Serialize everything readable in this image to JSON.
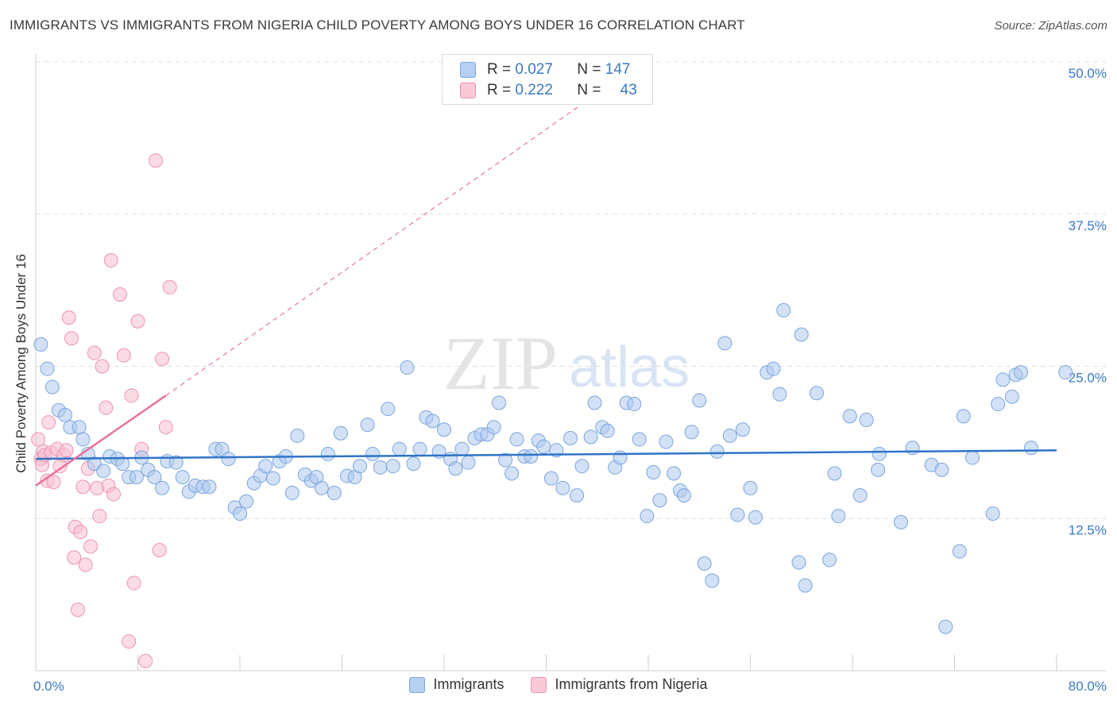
{
  "title": "IMMIGRANTS VS IMMIGRANTS FROM NIGERIA CHILD POVERTY AMONG BOYS UNDER 16 CORRELATION CHART",
  "source": "Source: ZipAtlas.com",
  "watermark": {
    "zip": "ZIP",
    "atlas": "atlas"
  },
  "colors": {
    "blue_fill": "#aec9ee",
    "blue_stroke": "#7aa6dc",
    "blue_line": "#2f74c8",
    "pink_fill": "#f7bfd0",
    "pink_stroke": "#ec93b0",
    "pink_line": "#e8719a",
    "axis_text": "#3a78c4",
    "grid": "#dddddd"
  },
  "stats": {
    "r_label": "R =",
    "n_label": "N =",
    "immigrants": {
      "r": "0.027",
      "n": "147"
    },
    "nigeria": {
      "r": "0.222",
      "n": "43"
    }
  },
  "chart_data": {
    "type": "scatter",
    "title": "IMMIGRANTS VS IMMIGRANTS FROM NIGERIA CHILD POVERTY AMONG BOYS UNDER 16 CORRELATION CHART",
    "xlabel": "",
    "ylabel": "Child Poverty Among Boys Under 16",
    "xlim": [
      0,
      80
    ],
    "ylim": [
      0,
      50
    ],
    "x_tick_labels": [
      "0.0%",
      "80.0%"
    ],
    "y_ticks": [
      12.5,
      25.0,
      37.5,
      50.0
    ],
    "y_tick_labels": [
      "12.5%",
      "25.0%",
      "37.5%",
      "50.0%"
    ],
    "legend": [
      "Immigrants",
      "Immigrants from Nigeria"
    ],
    "series": [
      {
        "name": "Immigrants",
        "trend": {
          "x": [
            0,
            80
          ],
          "y": [
            17.4,
            18.1
          ]
        },
        "points": [
          [
            0.4,
            26.8
          ],
          [
            0.9,
            24.8
          ],
          [
            1.3,
            23.3
          ],
          [
            1.8,
            21.4
          ],
          [
            2.3,
            21.0
          ],
          [
            2.7,
            20.0
          ],
          [
            3.4,
            20.0
          ],
          [
            3.7,
            19.0
          ],
          [
            4.1,
            17.8
          ],
          [
            4.6,
            17.0
          ],
          [
            5.3,
            16.4
          ],
          [
            5.8,
            17.6
          ],
          [
            6.4,
            17.4
          ],
          [
            6.8,
            17.0
          ],
          [
            7.3,
            15.9
          ],
          [
            7.9,
            15.9
          ],
          [
            8.3,
            17.5
          ],
          [
            8.8,
            16.5
          ],
          [
            9.3,
            15.9
          ],
          [
            9.9,
            15.0
          ],
          [
            10.3,
            17.2
          ],
          [
            11.0,
            17.1
          ],
          [
            11.5,
            15.9
          ],
          [
            12.0,
            14.7
          ],
          [
            12.5,
            15.2
          ],
          [
            13.1,
            15.1
          ],
          [
            13.6,
            15.1
          ],
          [
            14.1,
            18.2
          ],
          [
            14.6,
            18.2
          ],
          [
            15.1,
            17.4
          ],
          [
            15.6,
            13.4
          ],
          [
            16.0,
            12.9
          ],
          [
            16.5,
            13.9
          ],
          [
            17.1,
            15.4
          ],
          [
            17.6,
            16.0
          ],
          [
            18.0,
            16.8
          ],
          [
            18.6,
            15.8
          ],
          [
            19.1,
            17.2
          ],
          [
            19.6,
            17.6
          ],
          [
            20.1,
            14.6
          ],
          [
            20.5,
            19.3
          ],
          [
            21.1,
            16.1
          ],
          [
            21.6,
            15.6
          ],
          [
            22.0,
            15.9
          ],
          [
            22.4,
            15.0
          ],
          [
            22.9,
            17.8
          ],
          [
            23.4,
            14.6
          ],
          [
            23.9,
            19.5
          ],
          [
            24.4,
            16.0
          ],
          [
            25.0,
            15.9
          ],
          [
            25.4,
            16.8
          ],
          [
            26.0,
            20.2
          ],
          [
            26.4,
            17.8
          ],
          [
            27.0,
            16.7
          ],
          [
            27.6,
            21.5
          ],
          [
            28.0,
            16.8
          ],
          [
            28.5,
            18.2
          ],
          [
            29.1,
            24.9
          ],
          [
            29.6,
            17.0
          ],
          [
            30.1,
            18.2
          ],
          [
            30.6,
            20.8
          ],
          [
            31.1,
            20.5
          ],
          [
            31.6,
            18.0
          ],
          [
            32.0,
            19.8
          ],
          [
            32.5,
            17.4
          ],
          [
            32.9,
            16.6
          ],
          [
            33.4,
            18.2
          ],
          [
            33.9,
            17.1
          ],
          [
            34.4,
            19.1
          ],
          [
            34.9,
            19.4
          ],
          [
            35.4,
            19.4
          ],
          [
            35.9,
            20.0
          ],
          [
            36.3,
            22.0
          ],
          [
            36.8,
            17.3
          ],
          [
            37.3,
            16.2
          ],
          [
            37.7,
            19.0
          ],
          [
            38.3,
            17.6
          ],
          [
            38.8,
            17.6
          ],
          [
            39.4,
            18.9
          ],
          [
            39.8,
            18.4
          ],
          [
            40.4,
            15.8
          ],
          [
            40.8,
            18.1
          ],
          [
            41.3,
            15.0
          ],
          [
            41.9,
            19.1
          ],
          [
            42.4,
            14.4
          ],
          [
            42.8,
            16.8
          ],
          [
            43.5,
            19.2
          ],
          [
            43.8,
            22.0
          ],
          [
            44.4,
            20.0
          ],
          [
            44.8,
            19.7
          ],
          [
            45.4,
            16.7
          ],
          [
            45.8,
            17.5
          ],
          [
            46.3,
            22.0
          ],
          [
            46.9,
            21.9
          ],
          [
            47.3,
            19.0
          ],
          [
            47.9,
            12.7
          ],
          [
            48.4,
            16.3
          ],
          [
            48.9,
            14.0
          ],
          [
            49.4,
            18.8
          ],
          [
            50.0,
            16.2
          ],
          [
            50.5,
            14.8
          ],
          [
            50.8,
            14.4
          ],
          [
            51.4,
            19.6
          ],
          [
            52.0,
            22.2
          ],
          [
            52.4,
            8.8
          ],
          [
            53.0,
            7.4
          ],
          [
            53.4,
            18.0
          ],
          [
            54.0,
            26.9
          ],
          [
            54.4,
            19.3
          ],
          [
            55.0,
            12.8
          ],
          [
            55.4,
            19.8
          ],
          [
            56.0,
            15.0
          ],
          [
            56.4,
            12.6
          ],
          [
            57.3,
            24.5
          ],
          [
            57.8,
            24.8
          ],
          [
            58.3,
            22.7
          ],
          [
            58.6,
            29.6
          ],
          [
            59.8,
            8.9
          ],
          [
            60.0,
            27.6
          ],
          [
            60.3,
            7.0
          ],
          [
            61.2,
            22.8
          ],
          [
            62.2,
            9.1
          ],
          [
            62.6,
            16.2
          ],
          [
            62.9,
            12.7
          ],
          [
            63.8,
            20.9
          ],
          [
            64.6,
            14.4
          ],
          [
            65.1,
            20.6
          ],
          [
            66.0,
            16.5
          ],
          [
            66.1,
            17.8
          ],
          [
            67.8,
            12.2
          ],
          [
            68.7,
            18.3
          ],
          [
            70.2,
            16.9
          ],
          [
            71.0,
            16.5
          ],
          [
            71.3,
            3.6
          ],
          [
            72.4,
            9.8
          ],
          [
            72.7,
            20.9
          ],
          [
            73.4,
            17.5
          ],
          [
            75.0,
            12.9
          ],
          [
            75.4,
            21.9
          ],
          [
            75.8,
            23.9
          ],
          [
            76.5,
            22.5
          ],
          [
            76.8,
            24.3
          ],
          [
            77.2,
            24.5
          ],
          [
            78.0,
            18.3
          ],
          [
            80.7,
            24.5
          ]
        ]
      },
      {
        "name": "Immigrants from Nigeria",
        "trend": {
          "x": [
            0,
            10.2
          ],
          "y": [
            15.2,
            22.6
          ]
        },
        "trend_extension": {
          "x": [
            10.2,
            42.5
          ],
          "y": [
            22.6,
            46.3
          ]
        },
        "points": [
          [
            0.2,
            19.0
          ],
          [
            0.4,
            17.4
          ],
          [
            0.5,
            16.9
          ],
          [
            0.6,
            18.0
          ],
          [
            0.7,
            17.7
          ],
          [
            0.9,
            15.6
          ],
          [
            1.0,
            20.4
          ],
          [
            1.2,
            17.9
          ],
          [
            1.4,
            15.5
          ],
          [
            1.7,
            18.2
          ],
          [
            1.9,
            16.8
          ],
          [
            2.2,
            17.7
          ],
          [
            2.4,
            18.1
          ],
          [
            2.6,
            29.0
          ],
          [
            2.8,
            27.3
          ],
          [
            3.0,
            9.3
          ],
          [
            3.1,
            11.8
          ],
          [
            3.3,
            5.0
          ],
          [
            3.5,
            11.4
          ],
          [
            3.7,
            15.1
          ],
          [
            3.9,
            8.7
          ],
          [
            4.1,
            16.6
          ],
          [
            4.3,
            10.2
          ],
          [
            4.6,
            26.1
          ],
          [
            4.8,
            15.0
          ],
          [
            5.0,
            12.7
          ],
          [
            5.2,
            25.0
          ],
          [
            5.5,
            21.6
          ],
          [
            5.7,
            15.2
          ],
          [
            5.9,
            33.7
          ],
          [
            6.1,
            14.5
          ],
          [
            6.6,
            30.9
          ],
          [
            6.9,
            25.9
          ],
          [
            7.3,
            2.4
          ],
          [
            7.5,
            22.6
          ],
          [
            7.7,
            7.2
          ],
          [
            8.0,
            28.7
          ],
          [
            8.3,
            18.2
          ],
          [
            8.6,
            0.8
          ],
          [
            9.4,
            41.9
          ],
          [
            9.7,
            9.9
          ],
          [
            9.9,
            25.6
          ],
          [
            10.2,
            20.0
          ],
          [
            10.5,
            31.5
          ]
        ]
      }
    ]
  }
}
